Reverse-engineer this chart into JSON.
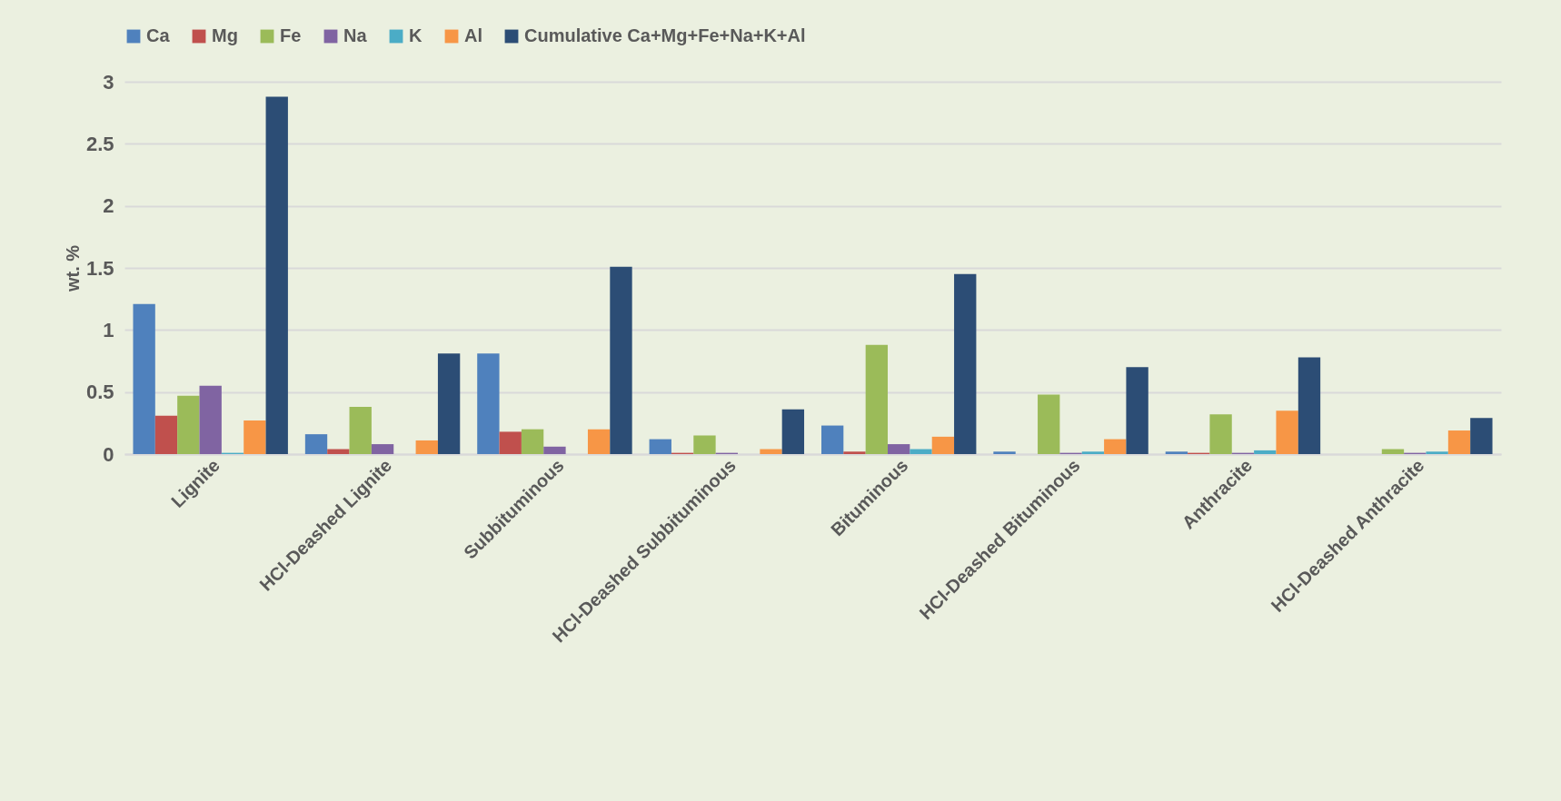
{
  "chart_data": {
    "type": "bar",
    "ylabel": "wt. %",
    "categories": [
      "Lignite",
      "HCl-Deashed Lignite",
      "Subbituminous",
      "HCl-Deashed Subbituminous",
      "Bituminous",
      "HCl-Deashed Bituminous",
      "Anthracite",
      "HCl-Deashed Anthracite"
    ],
    "series": [
      {
        "name": "Ca",
        "color": "#4f81bd",
        "values": [
          1.21,
          0.16,
          0.81,
          0.12,
          0.23,
          0.02,
          0.02,
          null
        ]
      },
      {
        "name": "Mg",
        "color": "#c0504d",
        "values": [
          0.31,
          0.04,
          0.18,
          0.01,
          0.02,
          null,
          0.01,
          null
        ]
      },
      {
        "name": "Fe",
        "color": "#9bbb59",
        "values": [
          0.47,
          0.38,
          0.2,
          0.15,
          0.88,
          0.48,
          0.32,
          0.04
        ]
      },
      {
        "name": "Na",
        "color": "#8064a2",
        "values": [
          0.55,
          0.08,
          0.06,
          0.01,
          0.08,
          0.01,
          0.01,
          0.01
        ]
      },
      {
        "name": "K",
        "color": "#4bacc6",
        "values": [
          0.01,
          null,
          null,
          null,
          0.04,
          0.02,
          0.03,
          0.02
        ]
      },
      {
        "name": "Al",
        "color": "#f79646",
        "values": [
          0.27,
          0.11,
          0.2,
          0.04,
          0.14,
          0.12,
          0.35,
          0.19
        ]
      },
      {
        "name": "Cumulative Ca+Mg+Fe+Na+K+Al",
        "color": "#2c4d75",
        "values": [
          2.88,
          0.81,
          1.51,
          0.36,
          1.45,
          0.7,
          0.78,
          0.29
        ]
      }
    ],
    "ylim": [
      0,
      3
    ],
    "yticks": [
      0,
      0.5,
      1,
      1.5,
      2,
      2.5,
      3
    ],
    "grid": "y",
    "legend": "top"
  }
}
